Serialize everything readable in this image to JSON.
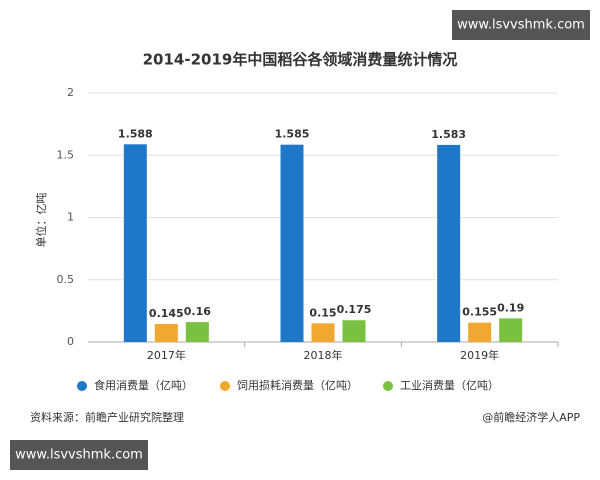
{
  "chart_data": {
    "type": "bar",
    "title": "2014-2019年中国稻谷各领域消费量统计情况",
    "y_label": "单位：亿吨",
    "categories": [
      "2017年",
      "2018年",
      "2019年"
    ],
    "series": [
      {
        "name": "食用消费量（亿吨）",
        "color": "#1f77c8",
        "values": [
          1.588,
          1.585,
          1.583
        ]
      },
      {
        "name": "饲用损耗消费量（亿吨）",
        "color": "#f0a830",
        "values": [
          0.145,
          0.15,
          0.155
        ]
      },
      {
        "name": "工业消费量（亿吨）",
        "color": "#7ac142",
        "values": [
          0.16,
          0.175,
          0.19
        ]
      }
    ],
    "ylim": [
      0,
      2
    ],
    "yticks": [
      0,
      0.5,
      1,
      1.5,
      2
    ],
    "grid": true,
    "legend": "bottom",
    "source": "资料来源：前瞻产业研究院整理",
    "credit": "@前瞻经济学人APP"
  },
  "watermarks": [
    "www.lsvvshmk.com",
    "www.lsvvshmk.com"
  ]
}
